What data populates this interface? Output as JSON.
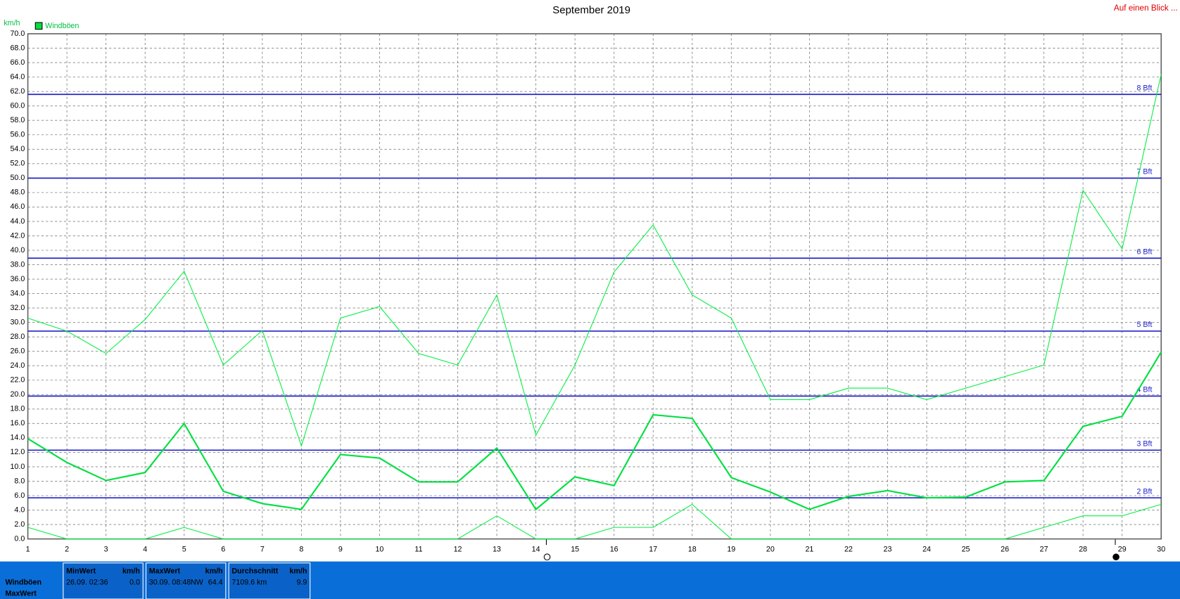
{
  "chart_data": {
    "type": "line",
    "title": "September 2019",
    "corner_link": "Auf einen Blick ...",
    "y_label": "km/h",
    "x": [
      1,
      2,
      3,
      4,
      5,
      6,
      7,
      8,
      9,
      10,
      11,
      12,
      13,
      14,
      15,
      16,
      17,
      18,
      19,
      20,
      21,
      22,
      23,
      24,
      25,
      26,
      27,
      28,
      29,
      30
    ],
    "xlim": [
      1,
      30
    ],
    "xticks": [
      1,
      2,
      3,
      4,
      5,
      6,
      7,
      8,
      9,
      10,
      11,
      12,
      13,
      14,
      15,
      16,
      17,
      18,
      19,
      20,
      21,
      22,
      23,
      24,
      25,
      26,
      27,
      28,
      29,
      30
    ],
    "ylim": [
      0,
      70
    ],
    "yticks": [
      {
        "value": 0,
        "label": "0.0"
      },
      {
        "value": 2,
        "label": "2.0"
      },
      {
        "value": 4,
        "label": "4.0"
      },
      {
        "value": 6,
        "label": "6.0"
      },
      {
        "value": 8,
        "label": "8.0"
      },
      {
        "value": 10,
        "label": "10.0"
      },
      {
        "value": 12,
        "label": "12.0"
      },
      {
        "value": 14,
        "label": "14.0"
      },
      {
        "value": 16,
        "label": "16.0"
      },
      {
        "value": 18,
        "label": "18.0"
      },
      {
        "value": 20,
        "label": "20.0"
      },
      {
        "value": 22,
        "label": "22.0"
      },
      {
        "value": 24,
        "label": "24.0"
      },
      {
        "value": 26,
        "label": "26.0"
      },
      {
        "value": 28,
        "label": "28.0"
      },
      {
        "value": 30,
        "label": "30.0"
      },
      {
        "value": 32,
        "label": "32.0"
      },
      {
        "value": 34,
        "label": "34.0"
      },
      {
        "value": 36,
        "label": "36.0"
      },
      {
        "value": 38,
        "label": "38.0"
      },
      {
        "value": 40,
        "label": "40.0"
      },
      {
        "value": 42,
        "label": "42.0"
      },
      {
        "value": 44,
        "label": "44.0"
      },
      {
        "value": 46,
        "label": "46.0"
      },
      {
        "value": 48,
        "label": "48.0"
      },
      {
        "value": 50,
        "label": "50.0"
      },
      {
        "value": 52,
        "label": "52.0"
      },
      {
        "value": 54,
        "label": "54.0"
      },
      {
        "value": 56,
        "label": "56.0"
      },
      {
        "value": 58,
        "label": "58.0"
      },
      {
        "value": 60,
        "label": "60.0"
      },
      {
        "value": 62,
        "label": "62.0"
      },
      {
        "value": 64,
        "label": "64.0"
      },
      {
        "value": 66,
        "label": "66.0"
      },
      {
        "value": 68,
        "label": "68.0"
      },
      {
        "value": 70,
        "label": "70.0"
      }
    ],
    "grid": true,
    "reference_lines": [
      {
        "value": 5.7,
        "label": "2 Bft"
      },
      {
        "value": 12.3,
        "label": "3 Bft"
      },
      {
        "value": 19.8,
        "label": "4 Bft"
      },
      {
        "value": 28.8,
        "label": "5 Bft"
      },
      {
        "value": 38.9,
        "label": "6 Bft"
      },
      {
        "value": 50.0,
        "label": "7 Bft"
      },
      {
        "value": 61.6,
        "label": "8 Bft"
      }
    ],
    "reference_color": "#2424c8",
    "series": [
      {
        "name": "Windböen",
        "color": "#00e040",
        "width": 2,
        "values": [
          13.9,
          10.6,
          8.1,
          9.2,
          16.0,
          6.6,
          4.9,
          4.1,
          11.7,
          11.2,
          7.9,
          7.9,
          12.6,
          4.1,
          8.6,
          7.4,
          17.2,
          16.7,
          8.5,
          6.5,
          4.1,
          5.9,
          6.7,
          5.7,
          5.8,
          7.9,
          8.1,
          15.6,
          17.0,
          25.9
        ]
      },
      {
        "color": "#00f040",
        "width": 1,
        "values": [
          30.6,
          28.8,
          25.7,
          30.4,
          37.1,
          24.1,
          28.9,
          12.9,
          30.6,
          32.2,
          25.7,
          24.1,
          33.8,
          14.4,
          24.1,
          37.0,
          43.5,
          33.8,
          30.6,
          19.3,
          19.3,
          20.9,
          20.9,
          19.3,
          20.9,
          22.5,
          24.1,
          48.3,
          40.2,
          64.4
        ]
      },
      {
        "color": "#00f040",
        "width": 1,
        "values": [
          1.6,
          0,
          0,
          0,
          1.6,
          0,
          0,
          0,
          0,
          0,
          0,
          0,
          3.2,
          0,
          0,
          1.6,
          1.6,
          4.8,
          0,
          0,
          0,
          0,
          0,
          0,
          0,
          0,
          1.6,
          3.2,
          3.2,
          4.8
        ]
      }
    ]
  },
  "footer": {
    "row_labels": [
      "Windböen",
      "MaxWert"
    ],
    "cells": [
      {
        "header": "MinWert",
        "unit": "km/h",
        "when": "26.09.  02:36",
        "value": "0.0"
      },
      {
        "header": "MaxWert",
        "unit": "km/h",
        "when": "30.09.  08:48",
        "dir": "NW",
        "value": "64.4"
      },
      {
        "header": "Durchschnitt",
        "unit": "km/h",
        "when": "7109.6 km",
        "value": "9.9"
      }
    ]
  }
}
